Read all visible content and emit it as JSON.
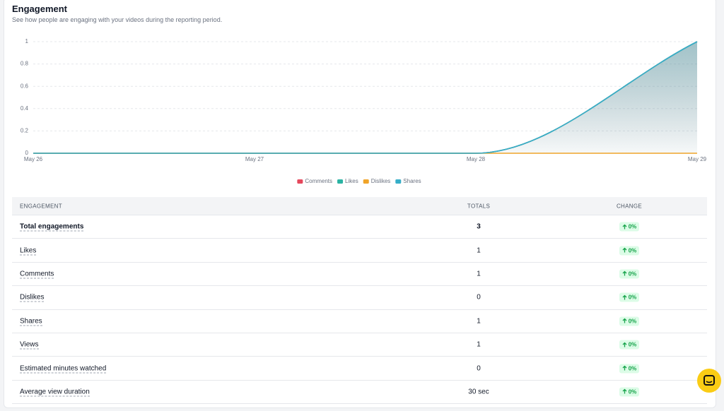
{
  "header": {
    "title": "Engagement",
    "subtitle": "See how people are engaging with your videos during the reporting period."
  },
  "chart_data": {
    "type": "line",
    "area": true,
    "categories": [
      "May 26",
      "May 27",
      "May 28",
      "May 29"
    ],
    "series": [
      {
        "name": "Comments",
        "color": "#e5485c",
        "values": [
          0,
          0,
          0,
          1
        ]
      },
      {
        "name": "Likes",
        "color": "#2bb3a3",
        "values": [
          0,
          0,
          0,
          1
        ]
      },
      {
        "name": "Dislikes",
        "color": "#f0a429",
        "values": [
          0,
          0,
          0,
          0
        ]
      },
      {
        "name": "Shares",
        "color": "#36aec8",
        "values": [
          0,
          0,
          0,
          1
        ]
      }
    ],
    "ylim": [
      0,
      1
    ],
    "yticks": [
      0,
      0.2,
      0.4,
      0.6,
      0.8,
      1
    ],
    "grid": true,
    "legend": "bottom"
  },
  "table": {
    "headers": [
      "ENGAGEMENT",
      "TOTALS",
      "CHANGE"
    ],
    "rows": [
      [
        "Total engagements",
        3,
        "0%"
      ],
      [
        "Likes",
        1,
        "0%"
      ],
      [
        "Comments",
        1,
        "0%"
      ],
      [
        "Dislikes",
        0,
        "0%"
      ],
      [
        "Shares",
        1,
        "0%"
      ],
      [
        "Views",
        1,
        "0%"
      ],
      [
        "Estimated minutes watched",
        0,
        "0%"
      ],
      [
        "Average view duration",
        "30 sec",
        "0%"
      ]
    ]
  }
}
